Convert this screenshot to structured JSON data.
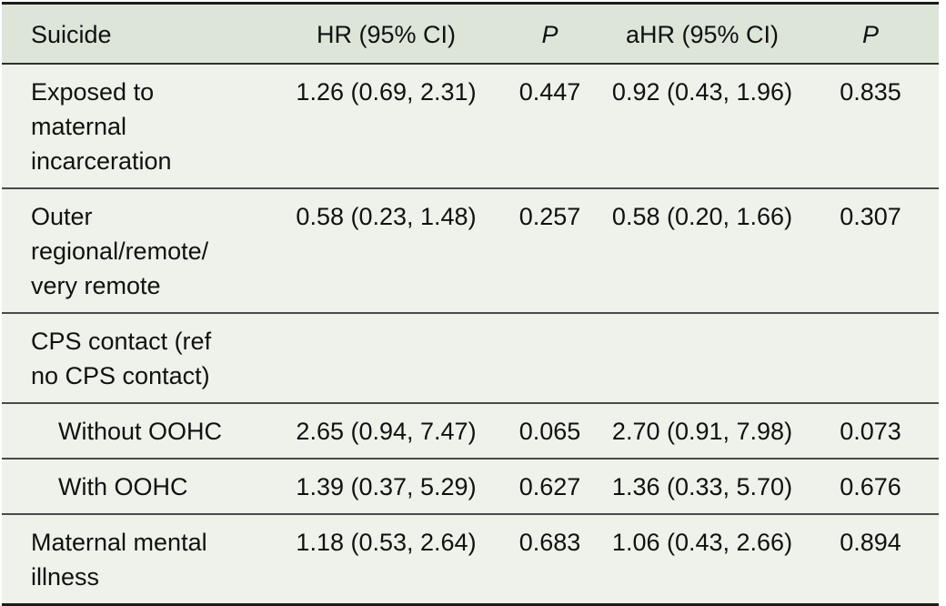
{
  "table": {
    "header": {
      "col0": "Suicide",
      "col1": "HR (95% CI)",
      "col2": "P",
      "col3": "aHR (95% CI)",
      "col4": "P"
    },
    "rows": [
      {
        "label": "Exposed to\nmaternal\nincarceration",
        "hr": "1.26 (0.69, 2.31)",
        "p": "0.447",
        "ahr": "0.92 (0.43, 1.96)",
        "ap": "0.835"
      },
      {
        "label": "Outer\nregional/remote/\nvery remote",
        "hr": "0.58 (0.23, 1.48)",
        "p": "0.257",
        "ahr": "0.58 (0.20, 1.66)",
        "ap": "0.307"
      },
      {
        "label": "CPS contact (ref\nno CPS contact)",
        "hr": "",
        "p": "",
        "ahr": "",
        "ap": ""
      },
      {
        "label": "Without OOHC",
        "hr": "2.65 (0.94, 7.47)",
        "p": "0.065",
        "ahr": "2.70 (0.91, 7.98)",
        "ap": "0.073"
      },
      {
        "label": "With OOHC",
        "hr": "1.39 (0.37, 5.29)",
        "p": "0.627",
        "ahr": "1.36 (0.33, 5.70)",
        "ap": "0.676"
      },
      {
        "label": "Maternal mental\nillness",
        "hr": "1.18 (0.53, 2.64)",
        "p": "0.683",
        "ahr": "1.06 (0.43, 2.66)",
        "ap": "0.894"
      }
    ]
  },
  "colors": {
    "header_bg": "#dce5d8",
    "body_bg": "#eef2ea",
    "outer_border": "#1c1c1c",
    "row_divider": "#4a4a4a",
    "text": "#111111"
  }
}
